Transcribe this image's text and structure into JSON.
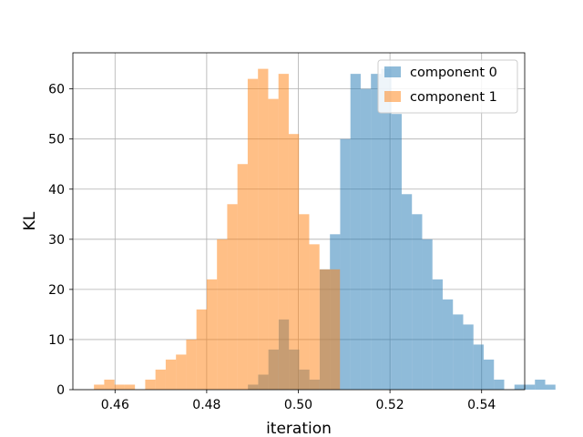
{
  "chart_data": {
    "type": "bar",
    "subtype": "overlaid-histogram",
    "title": "",
    "xlabel": "iteration",
    "ylabel": "KL",
    "xlim": [
      0.4508,
      0.5494
    ],
    "ylim": [
      0,
      67.2
    ],
    "xticks": [
      0.46,
      0.48,
      0.5,
      0.52,
      0.54
    ],
    "xtick_labels": [
      "0.46",
      "0.48",
      "0.50",
      "0.52",
      "0.54"
    ],
    "yticks": [
      0,
      10,
      20,
      30,
      40,
      50,
      60
    ],
    "ytick_labels": [
      "0",
      "10",
      "20",
      "30",
      "40",
      "50",
      "60"
    ],
    "grid": true,
    "legend_position": "top-right",
    "alpha": 0.5,
    "series": [
      {
        "name": "component 0",
        "color": "#1f77b4",
        "bins": {
          "start": 0.489,
          "width": 0.002237,
          "counts": [
            1,
            3,
            8,
            14,
            8,
            4,
            2,
            24,
            31,
            50,
            63,
            60,
            63,
            64,
            55,
            39,
            35,
            30,
            22,
            18,
            15,
            13,
            9,
            6,
            2,
            0,
            1,
            1,
            2,
            1
          ]
        }
      },
      {
        "name": "component 1",
        "color": "#ff7f0e",
        "bins": {
          "start": 0.4554,
          "width": 0.002237,
          "counts": [
            1,
            2,
            1,
            1,
            0,
            2,
            4,
            6,
            7,
            10,
            16,
            22,
            30,
            37,
            45,
            62,
            64,
            58,
            63,
            51,
            35,
            29,
            24,
            24
          ]
        }
      }
    ]
  }
}
